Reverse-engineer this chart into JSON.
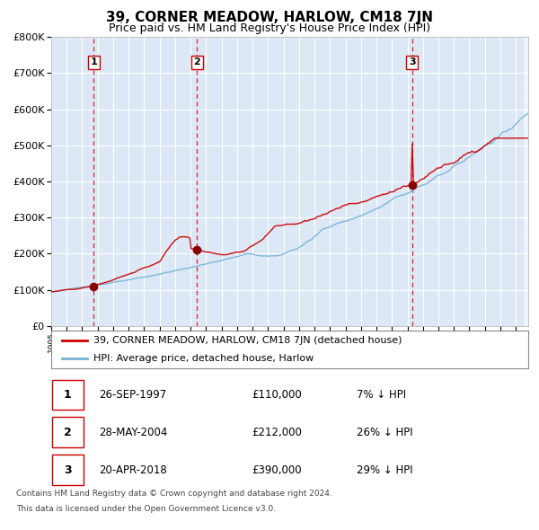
{
  "title": "39, CORNER MEADOW, HARLOW, CM18 7JN",
  "subtitle": "Price paid vs. HM Land Registry's House Price Index (HPI)",
  "bg_color": "#dce8f5",
  "fig_bg_color": "#ffffff",
  "hpi_color": "#7ab3d9",
  "price_color": "#cc0000",
  "sale_marker_color": "#880000",
  "sale_dates": [
    1997.74,
    2004.41,
    2018.3
  ],
  "sale_prices": [
    110000,
    212000,
    390000
  ],
  "sale_labels": [
    "1",
    "2",
    "3"
  ],
  "vline_color": "#cc0000",
  "grid_color": "#ffffff",
  "ylim": [
    0,
    800000
  ],
  "yticks": [
    0,
    100000,
    200000,
    300000,
    400000,
    500000,
    600000,
    700000,
    800000
  ],
  "xlim_start": 1995.0,
  "xlim_end": 2025.8,
  "legend_line1": "39, CORNER MEADOW, HARLOW, CM18 7JN (detached house)",
  "legend_line2": "HPI: Average price, detached house, Harlow",
  "table_data": [
    [
      "1",
      "26-SEP-1997",
      "£110,000",
      "7% ↓ HPI"
    ],
    [
      "2",
      "28-MAY-2004",
      "£212,000",
      "26% ↓ HPI"
    ],
    [
      "3",
      "20-APR-2018",
      "£390,000",
      "29% ↓ HPI"
    ]
  ],
  "footnote1": "Contains HM Land Registry data © Crown copyright and database right 2024.",
  "footnote2": "This data is licensed under the Open Government Licence v3.0."
}
